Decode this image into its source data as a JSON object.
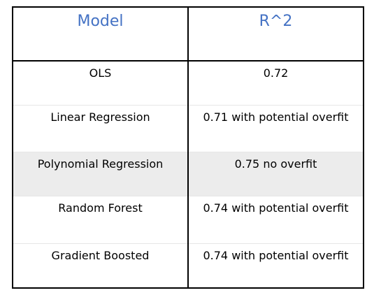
{
  "table": {
    "headers": [
      "Model",
      "R^2"
    ],
    "rows": [
      {
        "model": "OLS",
        "r2": "0.72",
        "shaded": false
      },
      {
        "model": "Linear Regression",
        "r2": "0.71  with potential overfit",
        "shaded": false
      },
      {
        "model": "Polynomial Regression",
        "r2": "0.75 no overfit",
        "shaded": true
      },
      {
        "model": "Random Forest",
        "r2": "0.74  with potential overfit",
        "shaded": false
      },
      {
        "model": "Gradient Boosted",
        "r2": "0.74  with potential overfit",
        "shaded": false
      }
    ]
  },
  "colors": {
    "header_text": "#4472C4",
    "shaded_row": "#ececec",
    "border": "#000000"
  }
}
